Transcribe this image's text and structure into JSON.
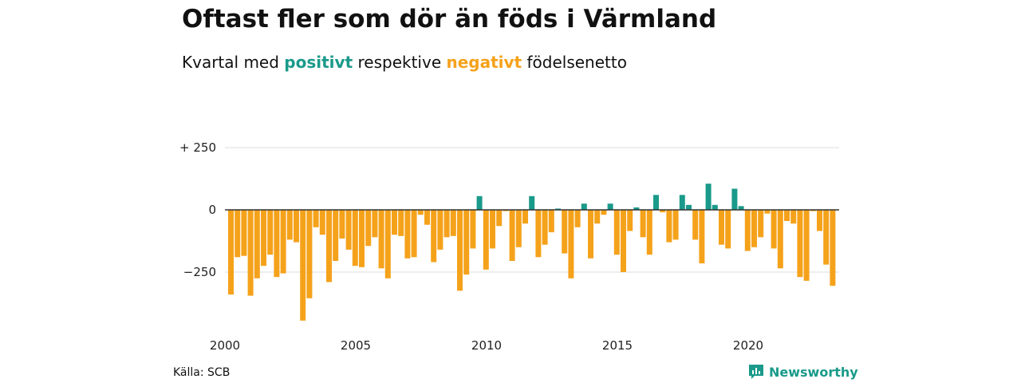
{
  "header": {
    "title": "Oftast fler som dör än föds i Värmland",
    "subtitle_prefix": "Kvartal med",
    "subtitle_positive": "positivt",
    "subtitle_middle": "respektive",
    "subtitle_negative": "negativt",
    "subtitle_suffix": "födelsenetto"
  },
  "footer": {
    "source": "Källa: SCB",
    "brand": "Newsworthy",
    "brand_icon": "newsworthy-logo-icon"
  },
  "colors": {
    "positive": "#1a9a8a",
    "negative": "#f5a21b",
    "grid": "#dddddd",
    "zero_line": "#333333"
  },
  "chart_data": {
    "type": "bar",
    "x_start": "2000 Q1",
    "frequency": "quarterly",
    "x_tick_labels": [
      "2000",
      "2005",
      "2010",
      "2015",
      "2020"
    ],
    "y_tick_labels": [
      "+ 250",
      "0",
      "−250"
    ],
    "y_ticks": [
      250,
      0,
      -250
    ],
    "ylim": [
      -450,
      250
    ],
    "grid": true,
    "values": [
      -340,
      -190,
      -185,
      -345,
      -275,
      -225,
      -180,
      -270,
      -255,
      -120,
      -130,
      -445,
      -355,
      -70,
      -100,
      -290,
      -205,
      -115,
      -160,
      -225,
      -230,
      -145,
      -110,
      -235,
      -275,
      -100,
      -105,
      -195,
      -190,
      -20,
      -60,
      -210,
      -160,
      -110,
      -105,
      -325,
      -260,
      -155,
      55,
      -240,
      -155,
      -65,
      -5,
      -205,
      -150,
      -55,
      55,
      -190,
      -140,
      -90,
      5,
      -175,
      -275,
      -70,
      25,
      -195,
      -55,
      -20,
      25,
      -180,
      -250,
      -85,
      10,
      -110,
      -180,
      60,
      -10,
      -130,
      -120,
      60,
      20,
      -120,
      -215,
      105,
      20,
      -140,
      -155,
      85,
      15,
      -165,
      -150,
      -110,
      -15,
      -155,
      -235,
      -45,
      -55,
      -270,
      -285,
      -5,
      -85,
      -220,
      -305
    ]
  }
}
